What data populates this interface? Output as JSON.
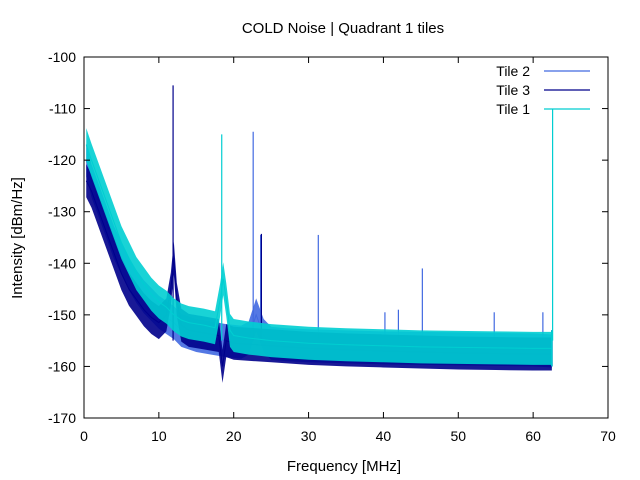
{
  "chart_data": {
    "type": "line",
    "title": "COLD Noise | Quadrant 1 tiles",
    "xlabel": "Frequency [MHz]",
    "ylabel": "Intensity [dBm/Hz]",
    "xlim": [
      0,
      70
    ],
    "ylim": [
      -170,
      -100
    ],
    "xticks": [
      0,
      10,
      20,
      30,
      40,
      50,
      60,
      70
    ],
    "yticks": [
      -170,
      -160,
      -150,
      -140,
      -130,
      -120,
      -110,
      -100
    ],
    "grid": false,
    "legend": "top-right",
    "series": [
      {
        "name": "Tile 2",
        "color": "#4169e1",
        "x": [
          0.3,
          1,
          2,
          3,
          4,
          5,
          6,
          7,
          8,
          9,
          10,
          11,
          12,
          13,
          15,
          17,
          19,
          21,
          22,
          23,
          24,
          25,
          27,
          30,
          35,
          40,
          45,
          50,
          55,
          60,
          62.5
        ],
        "y": [
          -120,
          -124,
          -128,
          -132,
          -136,
          -139,
          -142,
          -144.5,
          -146.5,
          -148,
          -149.5,
          -150.5,
          -151.5,
          -153,
          -154,
          -154.5,
          -155,
          -155.3,
          -154.5,
          -150,
          -154,
          -155.5,
          -155.8,
          -156,
          -156.2,
          -156.4,
          -156.5,
          -156.6,
          -156.7,
          -156.8,
          -157
        ],
        "spikes": [
          [
            22.6,
            -114.5
          ],
          [
            23.6,
            -134.5
          ],
          [
            31.3,
            -134.5
          ],
          [
            45.2,
            -141
          ],
          [
            42,
            -149
          ],
          [
            40.2,
            -149.5
          ],
          [
            54.8,
            -149.5
          ],
          [
            61.3,
            -149.5
          ]
        ]
      },
      {
        "name": "Tile 3",
        "color": "#00008b",
        "x": [
          0.3,
          1,
          2,
          3,
          4,
          5,
          6,
          7,
          8,
          9,
          10,
          11,
          11.6,
          12,
          12.4,
          13,
          14,
          16,
          18,
          18.5,
          19,
          20,
          25,
          30,
          35,
          40,
          45,
          50,
          55,
          60,
          62.5
        ],
        "y": [
          -124,
          -126,
          -130,
          -134,
          -138,
          -142,
          -145,
          -147,
          -149,
          -150.5,
          -151.5,
          -150,
          -145,
          -139,
          -147,
          -152,
          -153,
          -153.5,
          -154,
          -160,
          -155,
          -155.5,
          -156,
          -156.5,
          -156.8,
          -157,
          -157.2,
          -157.4,
          -157.5,
          -157.6,
          -157.6
        ],
        "spikes": [
          [
            11.9,
            -105.5
          ],
          [
            23.7,
            -134.3
          ]
        ]
      },
      {
        "name": "Tile 1",
        "color": "#00ced1",
        "x": [
          0.3,
          1,
          2,
          3,
          4,
          5,
          6,
          7,
          8,
          9,
          10,
          11,
          12,
          13,
          14,
          16,
          17.5,
          18.2,
          18.6,
          19,
          19.5,
          20,
          22,
          25,
          30,
          35,
          40,
          45,
          50,
          55,
          60,
          62.5
        ],
        "y": [
          -117,
          -120,
          -124,
          -128,
          -132,
          -136,
          -139,
          -142,
          -144,
          -146,
          -147.5,
          -148.5,
          -150,
          -151,
          -151.5,
          -152,
          -152.5,
          -147,
          -143,
          -147,
          -153,
          -154,
          -154.5,
          -155,
          -155.5,
          -155.8,
          -156,
          -156.2,
          -156.3,
          -156.4,
          -156.5,
          -156.5
        ],
        "spikes": [
          [
            18.4,
            -115
          ],
          [
            62.6,
            -110
          ]
        ]
      }
    ]
  }
}
